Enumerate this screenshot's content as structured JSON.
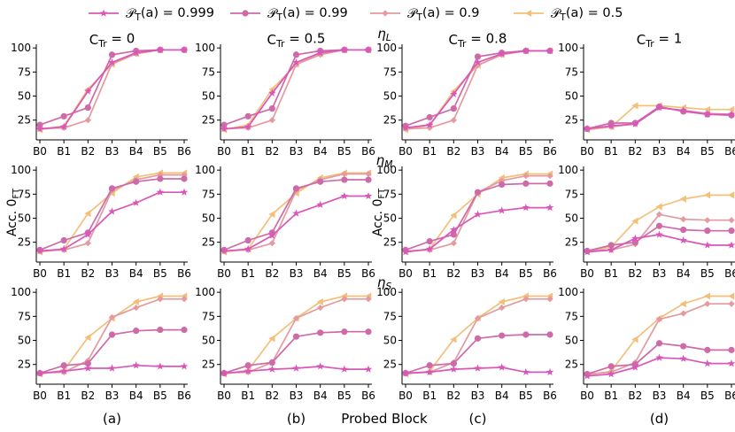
{
  "legend": {
    "entries": [
      {
        "label": "𝒫_T(a) = 0.999",
        "color": "#d957b8",
        "marker": "star"
      },
      {
        "label": "𝒫_T(a) = 0.99",
        "color": "#cf6aa8",
        "marker": "circle"
      },
      {
        "label": "𝒫_T(a) = 0.9",
        "color": "#e49a9e",
        "marker": "diamond"
      },
      {
        "label": "𝒫_T(a) = 0.5",
        "color": "#f2c07a",
        "marker": "triangle-left"
      }
    ],
    "placement": "top-center"
  },
  "column_titles": [
    "C_Tr = 0",
    "C_Tr = 0.5",
    "C_Tr = 0.8",
    "C_Tr = 1"
  ],
  "row_titles": [
    "η_L",
    "η_M",
    "η_S"
  ],
  "panel_labels": [
    "(a)",
    "(b)",
    "(c)",
    "(d)"
  ],
  "xlabel": "Probed Block",
  "ylabel": "Acc. 0_FT",
  "chart_data": {
    "type": "line",
    "categories": [
      "B0",
      "B1",
      "B2",
      "B3",
      "B4",
      "B5",
      "B6"
    ],
    "yticks": [
      25,
      50,
      75,
      100
    ],
    "ylim": [
      10,
      102
    ],
    "series_names": [
      "𝒫_T(a) = 0.999",
      "𝒫_T(a) = 0.99",
      "𝒫_T(a) = 0.9",
      "𝒫_T(a) = 0.5"
    ],
    "panels": [
      [
        {
          "row": "η_L",
          "col": "C_Tr = 0",
          "series": [
            [
              16,
              18,
              55,
              85,
              95,
              98,
              98
            ],
            [
              20,
              29,
              38,
              93,
              97,
              98,
              98
            ],
            [
              16,
              17,
              25,
              84,
              94,
              98,
              98
            ],
            [
              15,
              19,
              57,
              83,
              94,
              98,
              98
            ]
          ]
        },
        {
          "row": "η_L",
          "col": "C_Tr = 0.5",
          "series": [
            [
              16,
              18,
              53,
              85,
              95,
              98,
              98
            ],
            [
              20,
              29,
              37,
              93,
              97,
              98,
              98
            ],
            [
              16,
              17,
              25,
              83,
              93,
              98,
              98
            ],
            [
              15,
              20,
              57,
              83,
              94,
              98,
              98
            ]
          ]
        },
        {
          "row": "η_L",
          "col": "C_Tr = 0.8",
          "series": [
            [
              17,
              20,
              52,
              85,
              94,
              97,
              97
            ],
            [
              19,
              28,
              37,
              91,
              95,
              97,
              97
            ],
            [
              16,
              17,
              25,
              82,
              93,
              97,
              97
            ],
            [
              15,
              20,
              55,
              82,
              93,
              97,
              97
            ]
          ]
        },
        {
          "row": "η_L",
          "col": "C_Tr = 1",
          "series": [
            [
              16,
              19,
              21,
              38,
              35,
              31,
              31
            ],
            [
              16,
              22,
              22,
              39,
              34,
              31,
              30
            ],
            [
              16,
              18,
              21,
              38,
              35,
              32,
              31
            ],
            [
              15,
              18,
              40,
              40,
              38,
              36,
              36
            ]
          ]
        }
      ],
      [
        {
          "row": "η_M",
          "col": "C_Tr = 0",
          "series": [
            [
              16,
              18,
              33,
              57,
              66,
              77,
              77
            ],
            [
              17,
              27,
              35,
              81,
              88,
              91,
              91
            ],
            [
              16,
              17,
              24,
              79,
              90,
              95,
              95
            ],
            [
              15,
              18,
              55,
              76,
              93,
              97,
              97
            ]
          ]
        },
        {
          "row": "η_M",
          "col": "C_Tr = 0.5",
          "series": [
            [
              16,
              18,
              32,
              55,
              64,
              73,
              73
            ],
            [
              17,
              27,
              35,
              81,
              88,
              90,
              90
            ],
            [
              16,
              17,
              24,
              79,
              90,
              96,
              96
            ],
            [
              15,
              18,
              54,
              76,
              92,
              97,
              97
            ]
          ]
        },
        {
          "row": "η_M",
          "col": "C_Tr = 0.8",
          "series": [
            [
              15,
              18,
              38,
              54,
              58,
              61,
              61
            ],
            [
              17,
              26,
              33,
              77,
              85,
              86,
              86
            ],
            [
              16,
              17,
              24,
              77,
              89,
              94,
              94
            ],
            [
              15,
              18,
              53,
              75,
              92,
              96,
              96
            ]
          ]
        },
        {
          "row": "η_M",
          "col": "C_Tr = 1",
          "series": [
            [
              15,
              17,
              29,
              33,
              27,
              22,
              22
            ],
            [
              16,
              22,
              25,
              42,
              38,
              37,
              37
            ],
            [
              16,
              17,
              23,
              54,
              49,
              48,
              48
            ],
            [
              15,
              20,
              47,
              62,
              70,
              74,
              74
            ]
          ]
        }
      ],
      [
        {
          "row": "η_S",
          "col": "C_Tr = 0",
          "series": [
            [
              16,
              18,
              21,
              21,
              24,
              23,
              23
            ],
            [
              16,
              24,
              26,
              56,
              60,
              61,
              61
            ],
            [
              16,
              17,
              29,
              74,
              84,
              93,
              93
            ],
            [
              15,
              19,
              53,
              73,
              90,
              96,
              96
            ]
          ]
        },
        {
          "row": "η_S",
          "col": "C_Tr = 0.5",
          "series": [
            [
              16,
              18,
              20,
              21,
              23,
              20,
              20
            ],
            [
              16,
              24,
              27,
              54,
              58,
              59,
              59
            ],
            [
              16,
              17,
              27,
              73,
              84,
              93,
              93
            ],
            [
              15,
              19,
              52,
              73,
              90,
              96,
              96
            ]
          ]
        },
        {
          "row": "η_S",
          "col": "C_Tr = 0.8",
          "series": [
            [
              16,
              17,
              20,
              21,
              22,
              17,
              17
            ],
            [
              16,
              24,
              26,
              52,
              55,
              56,
              56
            ],
            [
              16,
              17,
              27,
              73,
              84,
              93,
              93
            ],
            [
              15,
              18,
              51,
              73,
              90,
              96,
              96
            ]
          ]
        },
        {
          "row": "η_S",
          "col": "C_Tr = 1",
          "series": [
            [
              13,
              15,
              22,
              32,
              31,
              26,
              26
            ],
            [
              15,
              23,
              25,
              47,
              44,
              40,
              40
            ],
            [
              15,
              17,
              27,
              72,
              78,
              88,
              88
            ],
            [
              14,
              18,
              51,
              73,
              88,
              96,
              96
            ]
          ]
        }
      ]
    ]
  }
}
